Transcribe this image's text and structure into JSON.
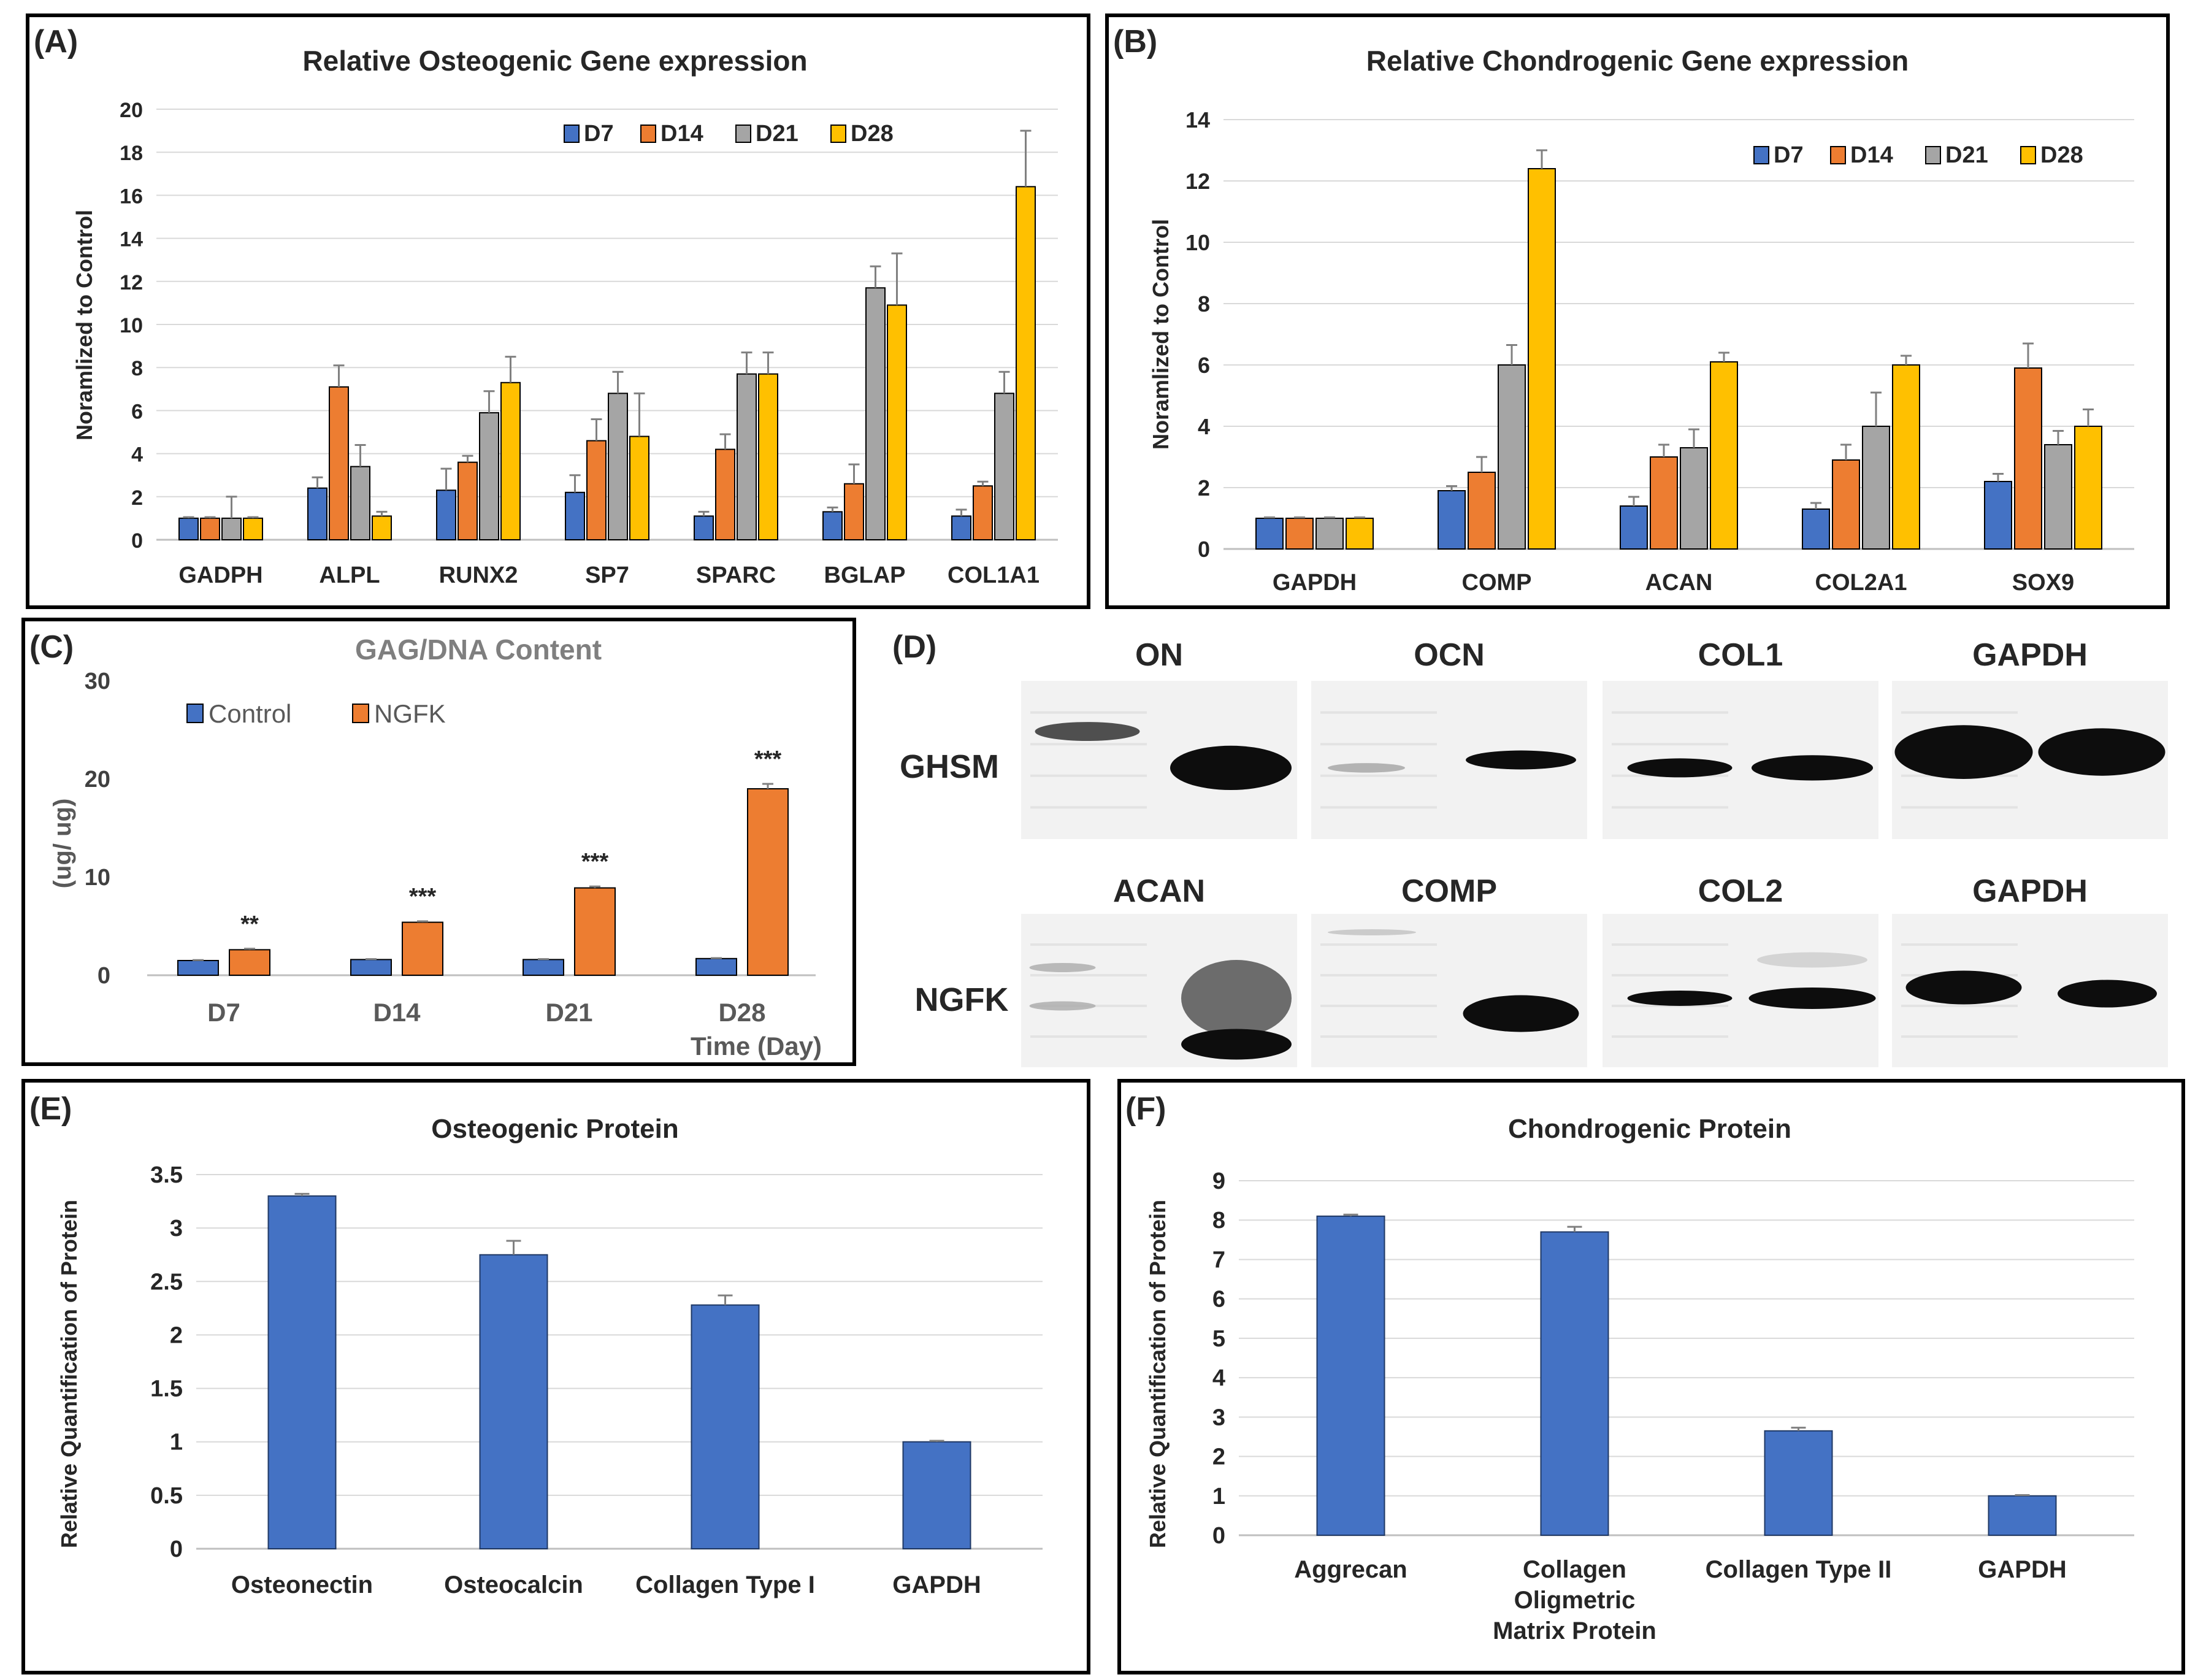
{
  "colors": {
    "D7": "#4472C4",
    "D14": "#ED7D31",
    "D21": "#A5A5A5",
    "D28": "#FFC000",
    "control": "#4472C4",
    "ngfk": "#ED7D31",
    "protein": "#4472C4",
    "grid": "#D9D9D9",
    "error": "#808080",
    "frame": "#000000"
  },
  "panels": {
    "A": {
      "label": "(A)"
    },
    "B": {
      "label": "(B)"
    },
    "C": {
      "label": "(C)"
    },
    "D": {
      "label": "(D)",
      "row_labels": [
        "GHSM",
        "NGFK"
      ],
      "top_blots": [
        "ON",
        "OCN",
        "COL1",
        "GAPDH"
      ],
      "bottom_blots": [
        "ACAN",
        "COMP",
        "COL2",
        "GAPDH"
      ]
    },
    "E": {
      "label": "(E)"
    },
    "F": {
      "label": "(F)"
    }
  },
  "chart_data": [
    {
      "id": "A",
      "type": "bar",
      "title": "Relative Osteogenic Gene expression",
      "xlabel": "",
      "ylabel": "Noramlized to Control",
      "ylim": [
        0,
        20
      ],
      "yticks": [
        0,
        2,
        4,
        6,
        8,
        10,
        12,
        14,
        16,
        18,
        20
      ],
      "grid": true,
      "legend_position": "top-right",
      "categories": [
        "GADPH",
        "ALPL",
        "RUNX2",
        "SP7",
        "SPARC",
        "BGLAP",
        "COL1A1"
      ],
      "series": [
        {
          "name": "D7",
          "values": [
            1,
            2.4,
            2.3,
            2.2,
            1.1,
            1.3,
            1.1
          ],
          "errors": [
            0.05,
            0.5,
            1.0,
            0.8,
            0.2,
            0.2,
            0.3
          ]
        },
        {
          "name": "D14",
          "values": [
            1,
            7.1,
            3.6,
            4.6,
            4.2,
            2.6,
            2.5
          ],
          "errors": [
            0.05,
            1.0,
            0.3,
            1.0,
            0.7,
            0.9,
            0.2
          ]
        },
        {
          "name": "D21",
          "values": [
            1,
            3.4,
            5.9,
            6.8,
            7.7,
            11.7,
            6.8
          ],
          "errors": [
            1.0,
            1.0,
            1.0,
            1.0,
            1.0,
            1.0,
            1.0
          ]
        },
        {
          "name": "D28",
          "values": [
            1,
            1.1,
            7.3,
            4.8,
            7.7,
            10.9,
            16.4
          ],
          "errors": [
            0.05,
            0.2,
            1.2,
            2.0,
            1.0,
            2.4,
            2.6
          ]
        }
      ]
    },
    {
      "id": "B",
      "type": "bar",
      "title": "Relative Chondrogenic Gene expression",
      "xlabel": "",
      "ylabel": "Noramlized to Control",
      "ylim": [
        0,
        14
      ],
      "yticks": [
        0,
        2,
        4,
        6,
        8,
        10,
        12,
        14
      ],
      "grid": true,
      "legend_position": "top-right",
      "categories": [
        "GAPDH",
        "COMP",
        "ACAN",
        "COL2A1",
        "SOX9"
      ],
      "series": [
        {
          "name": "D7",
          "values": [
            1,
            1.9,
            1.4,
            1.3,
            2.2
          ],
          "errors": [
            0.03,
            0.15,
            0.3,
            0.2,
            0.25
          ]
        },
        {
          "name": "D14",
          "values": [
            1,
            2.5,
            3.0,
            2.9,
            5.9
          ],
          "errors": [
            0.03,
            0.5,
            0.4,
            0.5,
            0.8
          ]
        },
        {
          "name": "D21",
          "values": [
            1,
            6.0,
            3.3,
            4.0,
            3.4
          ],
          "errors": [
            0.03,
            0.65,
            0.6,
            1.1,
            0.45
          ]
        },
        {
          "name": "D28",
          "values": [
            1,
            12.4,
            6.1,
            6.0,
            4.0
          ],
          "errors": [
            0.03,
            0.6,
            0.3,
            0.3,
            0.55
          ]
        }
      ]
    },
    {
      "id": "C",
      "type": "bar",
      "title": "GAG/DNA Content",
      "xlabel": "Time (Day)",
      "ylabel": "(ug/ ug)",
      "ylim": [
        0,
        30
      ],
      "yticks": [
        0,
        10,
        20,
        30
      ],
      "grid": false,
      "legend_position": "top-left",
      "categories": [
        "D7",
        "D14",
        "D21",
        "D28"
      ],
      "series": [
        {
          "name": "Control",
          "values": [
            1.5,
            1.6,
            1.6,
            1.7
          ],
          "errors": [
            0.05,
            0.05,
            0.05,
            0.05
          ]
        },
        {
          "name": "NGFK",
          "values": [
            2.6,
            5.4,
            8.9,
            19.0
          ],
          "errors": [
            0.1,
            0.1,
            0.15,
            0.5
          ]
        }
      ],
      "significance": [
        "**",
        "***",
        "***",
        "***"
      ]
    },
    {
      "id": "E",
      "type": "bar",
      "title": "Osteogenic Protein",
      "xlabel": "",
      "ylabel": "Relative Quantification of Protein",
      "ylim": [
        0,
        3.5
      ],
      "yticks": [
        "0",
        "0.5",
        "1",
        "1.5",
        "2",
        "2.5",
        "3",
        "3.5"
      ],
      "grid": true,
      "legend_position": "none",
      "categories": [
        "Osteonectin",
        "Osteocalcin",
        "Collagen Type I",
        "GAPDH"
      ],
      "values": [
        3.3,
        2.75,
        2.28,
        1.0
      ],
      "errors": [
        0.02,
        0.13,
        0.09,
        0.01
      ]
    },
    {
      "id": "F",
      "type": "bar",
      "title": "Chondrogenic Protein",
      "xlabel": "",
      "ylabel": "Relative Quantification of Protein",
      "ylim": [
        0,
        9
      ],
      "yticks": [
        0,
        1,
        2,
        3,
        4,
        5,
        6,
        7,
        8,
        9
      ],
      "grid": true,
      "legend_position": "none",
      "categories": [
        "Aggrecan",
        "Collagen Oligmetric Matrix Protein",
        "Collagen Type II",
        "GAPDH"
      ],
      "category_lines": [
        [
          "Aggrecan"
        ],
        [
          "Collagen",
          "Oligmetric",
          "Matrix Protein"
        ],
        [
          "Collagen Type II"
        ],
        [
          "GAPDH"
        ]
      ],
      "values": [
        8.1,
        7.7,
        2.65,
        1.0
      ],
      "errors": [
        0.04,
        0.13,
        0.08,
        0.02
      ]
    }
  ]
}
